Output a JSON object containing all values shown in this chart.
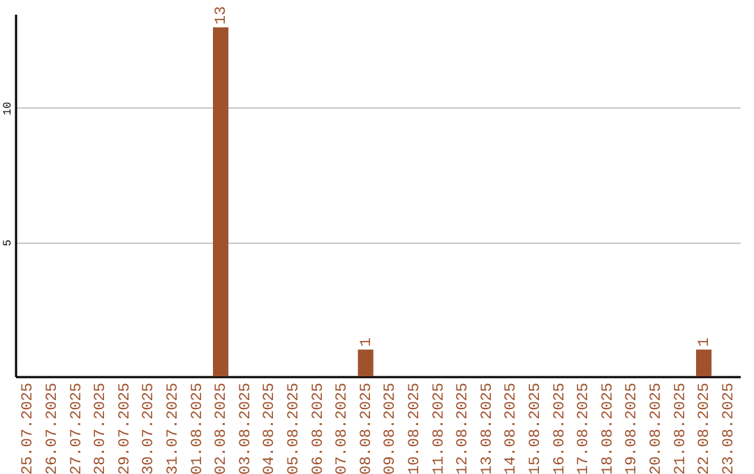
{
  "chart_data": {
    "type": "bar",
    "categories": [
      "25.07.2025",
      "26.07.2025",
      "27.07.2025",
      "28.07.2025",
      "29.07.2025",
      "30.07.2025",
      "31.07.2025",
      "01.08.2025",
      "02.08.2025",
      "03.08.2025",
      "04.08.2025",
      "05.08.2025",
      "06.08.2025",
      "07.08.2025",
      "08.08.2025",
      "09.08.2025",
      "10.08.2025",
      "11.08.2025",
      "12.08.2025",
      "13.08.2025",
      "14.08.2025",
      "15.08.2025",
      "16.08.2025",
      "17.08.2025",
      "18.08.2025",
      "19.08.2025",
      "20.08.2025",
      "21.08.2025",
      "22.08.2025",
      "23.08.2025"
    ],
    "values": [
      0,
      0,
      0,
      0,
      0,
      0,
      0,
      0,
      13,
      0,
      0,
      0,
      0,
      0,
      1,
      0,
      0,
      0,
      0,
      0,
      0,
      0,
      0,
      0,
      0,
      0,
      0,
      0,
      1,
      0
    ],
    "value_labels": [
      null,
      null,
      null,
      null,
      null,
      null,
      null,
      null,
      "13",
      null,
      null,
      null,
      null,
      null,
      "1",
      null,
      null,
      null,
      null,
      null,
      null,
      null,
      null,
      null,
      null,
      null,
      null,
      null,
      "1",
      null
    ],
    "color": "#a0522d",
    "ylim": [
      0,
      13.5
    ],
    "yticks": [
      5,
      10
    ],
    "grid": "y"
  }
}
